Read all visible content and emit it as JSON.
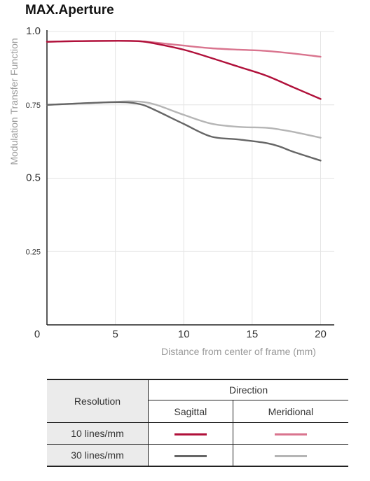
{
  "title": "MAX.Aperture",
  "chart_data": {
    "type": "line",
    "xlabel": "Distance from center of frame (mm)",
    "ylabel": "Modulation Transfer Function",
    "xlim": [
      0,
      21
    ],
    "ylim": [
      0,
      1.0
    ],
    "x_ticks": [
      {
        "value": 0,
        "label": "0"
      },
      {
        "value": 5,
        "label": "5"
      },
      {
        "value": 10,
        "label": "10"
      },
      {
        "value": 15,
        "label": "15"
      },
      {
        "value": 20,
        "label": "20"
      }
    ],
    "y_ticks": [
      {
        "value": 0.25,
        "label": "0.25"
      },
      {
        "value": 0.5,
        "label": "0.5"
      },
      {
        "value": 0.75,
        "label": "0.75"
      },
      {
        "value": 1.0,
        "label": "1.0"
      }
    ],
    "grid": "vertical",
    "series": [
      {
        "id": "s10",
        "color": "#b0103a",
        "x": [
          0,
          2,
          4,
          6,
          7,
          8,
          10,
          12,
          14,
          16,
          18,
          20
        ],
        "y": [
          0.965,
          0.967,
          0.968,
          0.968,
          0.966,
          0.958,
          0.938,
          0.91,
          0.88,
          0.85,
          0.81,
          0.77
        ]
      },
      {
        "id": "m10",
        "color": "#d9748e",
        "x": [
          0,
          2,
          4,
          6,
          7,
          8,
          10,
          12,
          14,
          16,
          18,
          20
        ],
        "y": [
          0.965,
          0.967,
          0.968,
          0.968,
          0.966,
          0.962,
          0.952,
          0.943,
          0.938,
          0.934,
          0.925,
          0.914
        ]
      },
      {
        "id": "s30",
        "color": "#666666",
        "x": [
          0,
          2,
          4,
          5,
          6,
          7,
          8,
          10,
          12,
          14,
          16,
          17,
          18,
          20
        ],
        "y": [
          0.75,
          0.754,
          0.758,
          0.759,
          0.758,
          0.75,
          0.73,
          0.685,
          0.642,
          0.632,
          0.62,
          0.608,
          0.59,
          0.56
        ]
      },
      {
        "id": "m30",
        "color": "#b5b5b5",
        "x": [
          0,
          2,
          4,
          5,
          6,
          7,
          8,
          10,
          12,
          14,
          16,
          17,
          18,
          20
        ],
        "y": [
          0.75,
          0.754,
          0.758,
          0.76,
          0.762,
          0.76,
          0.75,
          0.716,
          0.686,
          0.675,
          0.672,
          0.666,
          0.658,
          0.638
        ]
      }
    ]
  },
  "legend_table": {
    "resolution_header": "Resolution",
    "direction_header": "Direction",
    "sagittal": "Sagittal",
    "meridional": "Meridional",
    "row1_label": "10 lines/mm",
    "row2_label": "30 lines/mm",
    "colors": {
      "sagittal_10": "#b0103a",
      "meridional_10": "#d9748e",
      "sagittal_30": "#666666",
      "meridional_30": "#b5b5b5"
    }
  }
}
